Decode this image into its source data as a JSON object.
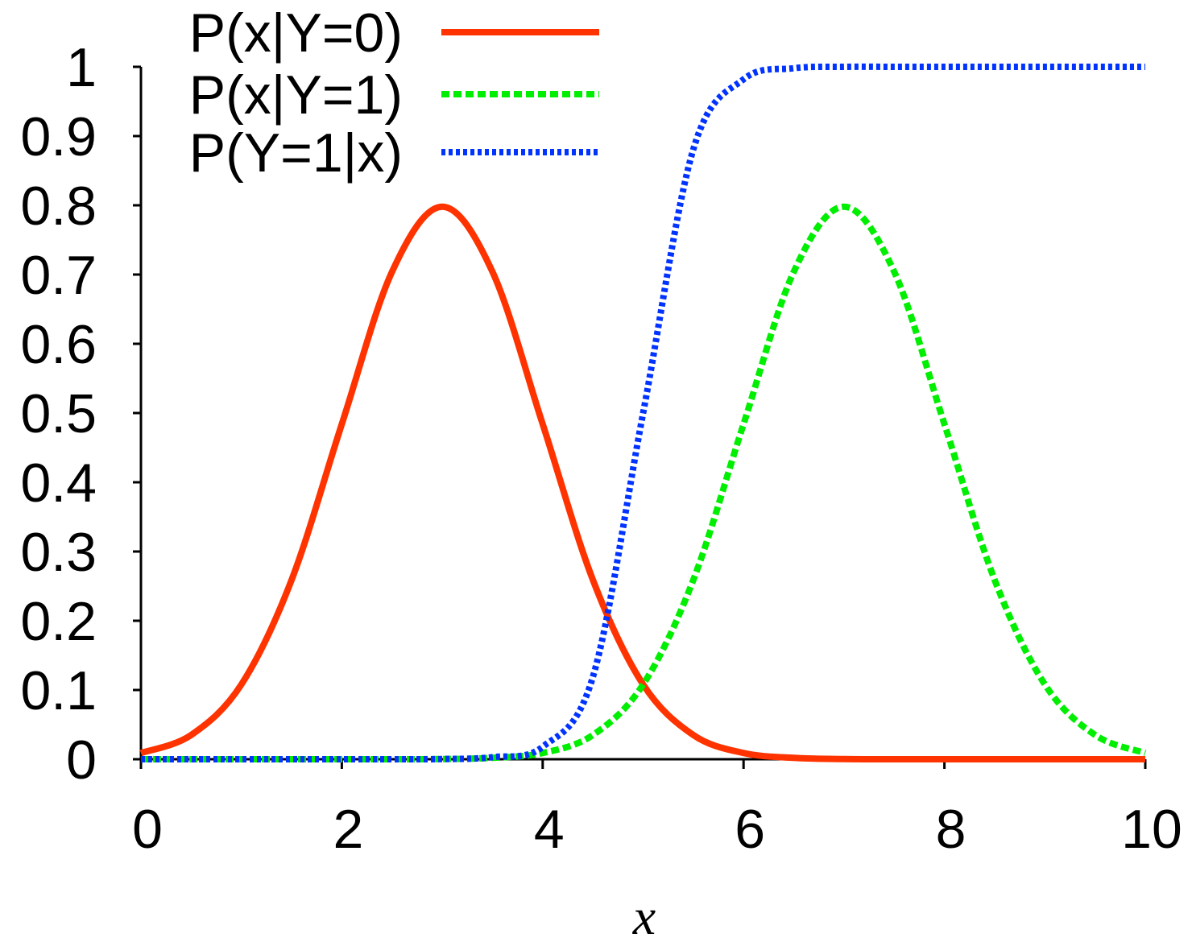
{
  "chart_data": {
    "type": "line",
    "title": "",
    "xlabel": "x",
    "ylabel": "",
    "xlim": [
      0,
      10
    ],
    "ylim": [
      0,
      1
    ],
    "grid": false,
    "legend_position": "top-left",
    "x_ticks": [
      "0",
      "2",
      "4",
      "6",
      "8",
      "10"
    ],
    "y_ticks": [
      "0",
      "0.1",
      "0.2",
      "0.3",
      "0.4",
      "0.5",
      "0.6",
      "0.7",
      "0.8",
      "0.9",
      "1"
    ],
    "x": [
      0,
      0.5,
      1,
      1.5,
      2,
      2.5,
      3,
      3.5,
      4,
      4.5,
      5,
      5.5,
      6,
      6.5,
      7,
      7.5,
      8,
      8.5,
      9,
      9.5,
      10
    ],
    "series": [
      {
        "name": "P(x|Y=0)",
        "color": "#ff3300",
        "style": "solid",
        "values": [
          0.009,
          0.035,
          0.108,
          0.259,
          0.484,
          0.704,
          0.798,
          0.704,
          0.484,
          0.259,
          0.108,
          0.035,
          0.009,
          0.002,
          0.0003,
          0.0,
          0.0,
          0.0,
          0.0,
          0.0,
          0.0
        ]
      },
      {
        "name": "P(x|Y=1)",
        "color": "#00ee00",
        "style": "dashed",
        "values": [
          0.0,
          0.0,
          0.0,
          0.0,
          0.0,
          0.0,
          0.0003,
          0.002,
          0.009,
          0.035,
          0.108,
          0.259,
          0.484,
          0.704,
          0.798,
          0.704,
          0.484,
          0.259,
          0.108,
          0.035,
          0.009
        ]
      },
      {
        "name": "P(Y=1|x)",
        "color": "#0033ff",
        "style": "dotted",
        "values": [
          0.0,
          0.0,
          0.0,
          0.0,
          0.0,
          0.0,
          0.0003,
          0.003,
          0.018,
          0.119,
          0.5,
          0.881,
          0.982,
          0.998,
          1.0,
          1.0,
          1.0,
          1.0,
          1.0,
          1.0,
          1.0
        ]
      }
    ]
  }
}
